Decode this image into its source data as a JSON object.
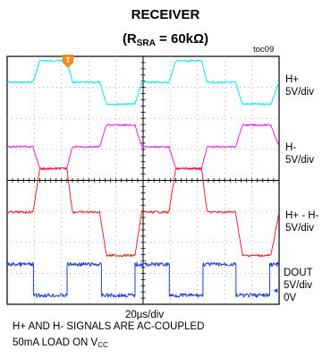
{
  "title": "RECEIVER",
  "subtitle": {
    "open": "(R",
    "sub": "SRA",
    "tail": " = 60kΩ)"
  },
  "figure_id": "toc09",
  "timebase": "20μs/div",
  "notes": {
    "line1": "H+ AND H- SIGNALS ARE AC-COUPLED",
    "line2_main": "50mA LOAD ON V",
    "line2_sub": "CC"
  },
  "trigger_marker": "T",
  "ground_marker": "◄",
  "channels": [
    {
      "label": "H+",
      "scale": "5V/div",
      "color": "#00e5ee"
    },
    {
      "label": "H-",
      "scale": "5V/div",
      "color": "#e81ee8"
    },
    {
      "label": "H+ - H-",
      "scale": "5V/div",
      "color": "#e8262b"
    },
    {
      "label": "DOUT",
      "scale": "5V/div",
      "ground": "0V",
      "color": "#1f3fd8"
    }
  ],
  "chart_data": {
    "type": "line",
    "x_unit": "μs",
    "time_per_division": 20,
    "x_divisions": 10,
    "x_range": [
      0,
      200
    ],
    "volts_per_division": 5,
    "grid": true,
    "series": [
      {
        "name": "H+",
        "x": [
          0,
          19,
          24,
          44,
          48,
          68,
          73,
          94,
          99,
          119,
          124,
          143,
          147,
          168,
          173,
          194,
          200
        ],
        "y": [
          0,
          0,
          3.5,
          3.5,
          0,
          0,
          -3.5,
          -3.5,
          0,
          0,
          3.5,
          3.5,
          0,
          0,
          -3.5,
          -3.5,
          0
        ]
      },
      {
        "name": "H-",
        "x": [
          0,
          19,
          24,
          44,
          48,
          68,
          73,
          94,
          99,
          119,
          124,
          143,
          147,
          168,
          173,
          194,
          200
        ],
        "y": [
          0,
          0,
          -3.5,
          -3.5,
          0,
          0,
          3.5,
          3.5,
          0,
          0,
          -3.5,
          -3.5,
          0,
          0,
          3.5,
          3.5,
          0
        ]
      },
      {
        "name": "H+ - H-",
        "x": [
          0,
          19,
          24,
          44,
          48,
          68,
          73,
          94,
          99,
          119,
          124,
          143,
          147,
          168,
          173,
          194,
          200
        ],
        "y": [
          0,
          0,
          7,
          7,
          0,
          0,
          -7,
          -7,
          0,
          0,
          7,
          7,
          0,
          0,
          -7,
          -7,
          0
        ]
      },
      {
        "name": "DOUT",
        "x": [
          0,
          19,
          19,
          44,
          44,
          69,
          69,
          94,
          94,
          119,
          119,
          144,
          144,
          168,
          168,
          193,
          193,
          200
        ],
        "y": [
          5,
          5,
          0,
          0,
          5,
          5,
          0,
          0,
          5,
          5,
          0,
          0,
          5,
          5,
          0,
          0,
          5,
          5
        ]
      }
    ]
  }
}
